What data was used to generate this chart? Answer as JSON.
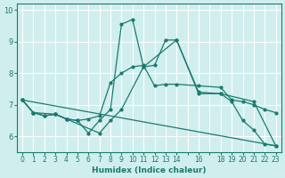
{
  "xlabel": "Humidex (Indice chaleur)",
  "ylabel": "",
  "bg_color": "#d0eeee",
  "grid_color": "#ffffff",
  "line_color": "#1a7a6e",
  "xlim": [
    -0.5,
    23.5
  ],
  "ylim": [
    5.5,
    10.2
  ],
  "xtick_positions": [
    0,
    1,
    2,
    3,
    4,
    5,
    6,
    7,
    8,
    9,
    10,
    11,
    12,
    13,
    14,
    15,
    16,
    17,
    18,
    19,
    20,
    21,
    22,
    23
  ],
  "xtick_labels": [
    "0",
    "1",
    "2",
    "3",
    "4",
    "5",
    "6",
    "7",
    "8",
    "9",
    "10",
    "11",
    "12",
    "13",
    "14",
    "",
    "16",
    "",
    "18",
    "19",
    "20",
    "21",
    "22",
    "23"
  ],
  "yticks": [
    6,
    7,
    8,
    9,
    10
  ],
  "lines": [
    {
      "x": [
        0,
        1,
        2,
        3,
        4,
        5,
        6,
        7,
        8,
        9,
        10,
        11,
        12,
        13,
        14,
        16,
        18,
        19,
        20,
        21,
        22,
        23
      ],
      "y": [
        7.15,
        6.75,
        6.65,
        6.7,
        6.55,
        6.5,
        6.1,
        6.5,
        6.85,
        9.55,
        9.7,
        8.2,
        8.25,
        9.05,
        9.05,
        7.4,
        7.35,
        7.1,
        6.5,
        6.2,
        5.75,
        5.7
      ],
      "markers": true
    },
    {
      "x": [
        0,
        1,
        2,
        3,
        4,
        5,
        6,
        7,
        8,
        9,
        10,
        11,
        12,
        13,
        14,
        16,
        18,
        19,
        20,
        21,
        22,
        23
      ],
      "y": [
        7.15,
        6.75,
        6.65,
        6.7,
        6.55,
        6.5,
        6.55,
        6.65,
        7.7,
        8.0,
        8.2,
        8.25,
        7.6,
        7.65,
        7.65,
        7.6,
        7.55,
        7.15,
        7.1,
        7.0,
        6.85,
        6.75
      ],
      "markers": true
    },
    {
      "x": [
        0,
        1,
        3,
        4,
        7,
        8,
        9,
        11,
        14,
        16,
        18,
        21,
        23
      ],
      "y": [
        7.15,
        6.75,
        6.7,
        6.55,
        6.1,
        6.5,
        6.85,
        8.2,
        9.05,
        7.35,
        7.35,
        7.1,
        5.7
      ],
      "markers": true
    },
    {
      "x": [
        0,
        23
      ],
      "y": [
        7.15,
        5.7
      ],
      "markers": false
    }
  ]
}
